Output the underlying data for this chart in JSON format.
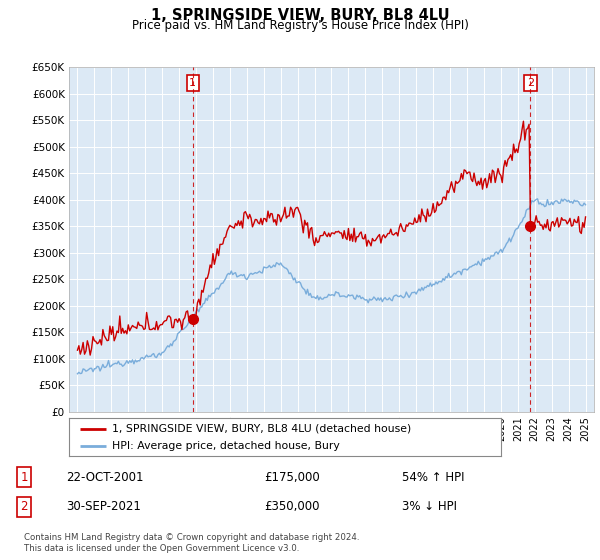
{
  "title": "1, SPRINGSIDE VIEW, BURY, BL8 4LU",
  "subtitle": "Price paid vs. HM Land Registry's House Price Index (HPI)",
  "ylabel_ticks": [
    "£0",
    "£50K",
    "£100K",
    "£150K",
    "£200K",
    "£250K",
    "£300K",
    "£350K",
    "£400K",
    "£450K",
    "£500K",
    "£550K",
    "£600K",
    "£650K"
  ],
  "ytick_values": [
    0,
    50000,
    100000,
    150000,
    200000,
    250000,
    300000,
    350000,
    400000,
    450000,
    500000,
    550000,
    600000,
    650000
  ],
  "hpi_color": "#7aaddb",
  "price_color": "#cc0000",
  "chart_bg": "#dce9f5",
  "sale1_date": 2001.81,
  "sale1_price": 175000,
  "sale2_date": 2021.75,
  "sale2_price": 350000,
  "legend_label1": "1, SPRINGSIDE VIEW, BURY, BL8 4LU (detached house)",
  "legend_label2": "HPI: Average price, detached house, Bury",
  "table_row1_num": "1",
  "table_row1_date": "22-OCT-2001",
  "table_row1_price": "£175,000",
  "table_row1_hpi": "54% ↑ HPI",
  "table_row2_num": "2",
  "table_row2_date": "30-SEP-2021",
  "table_row2_price": "£350,000",
  "table_row2_hpi": "3% ↓ HPI",
  "footer": "Contains HM Land Registry data © Crown copyright and database right 2024.\nThis data is licensed under the Open Government Licence v3.0.",
  "background_color": "#ffffff",
  "grid_color": "#aec8e0",
  "xmin": 1994.5,
  "xmax": 2025.5,
  "ymin": 0,
  "ymax": 650000
}
